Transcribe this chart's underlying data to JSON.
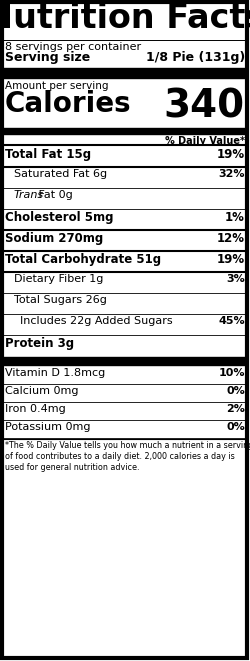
{
  "title": "Nutrition Facts",
  "servings_per_container": "8 servings per container",
  "serving_size_label": "Serving size",
  "serving_size_value": "1/8 Pie (131g)",
  "amount_per_serving": "Amount per serving",
  "calories_label": "Calories",
  "calories_value": "340",
  "daily_value_header": "% Daily Value*",
  "rows": [
    {
      "label": "Total Fat 15g",
      "value": "19%",
      "bold": true,
      "indent": 0,
      "trans": false
    },
    {
      "label": "Saturated Fat 6g",
      "value": "32%",
      "bold": false,
      "indent": 1,
      "trans": false
    },
    {
      "label": "Fat 0g",
      "value": "",
      "bold": false,
      "indent": 1,
      "trans": true
    },
    {
      "label": "Cholesterol 5mg",
      "value": "1%",
      "bold": true,
      "indent": 0,
      "trans": false
    },
    {
      "label": "Sodium 270mg",
      "value": "12%",
      "bold": true,
      "indent": 0,
      "trans": false
    },
    {
      "label": "Total Carbohydrate 51g",
      "value": "19%",
      "bold": true,
      "indent": 0,
      "trans": false
    },
    {
      "label": "Dietary Fiber 1g",
      "value": "3%",
      "bold": false,
      "indent": 1,
      "trans": false
    },
    {
      "label": "Total Sugars 26g",
      "value": "",
      "bold": false,
      "indent": 1,
      "trans": false
    },
    {
      "label": "Includes 22g Added Sugars",
      "value": "45%",
      "bold": false,
      "indent": 2,
      "trans": false
    },
    {
      "label": "Protein 3g",
      "value": "",
      "bold": true,
      "indent": 0,
      "trans": false
    }
  ],
  "vitamin_rows": [
    {
      "label": "Vitamin D 1.8mcg",
      "value": "10%"
    },
    {
      "label": "Calcium 0mg",
      "value": "0%"
    },
    {
      "label": "Iron 0.4mg",
      "value": "2%"
    },
    {
      "label": "Potassium 0mg",
      "value": "0%"
    }
  ],
  "footnote": "*The % Daily Value tells you how much a nutrient in a serving of food contributes to a daily diet. 2,000 calories a day is used for general nutrition advice.",
  "figw": 2.5,
  "figh": 6.61,
  "dpi": 100
}
